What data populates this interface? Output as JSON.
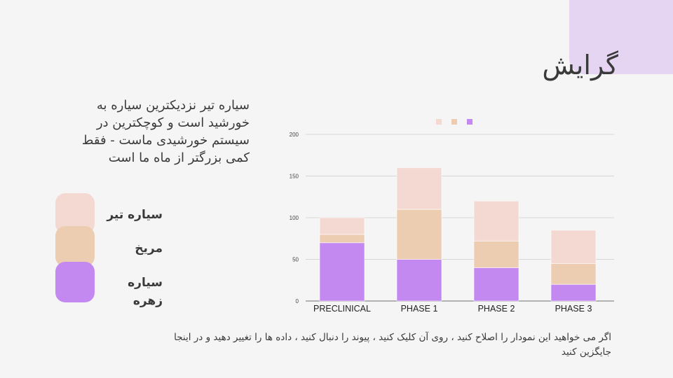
{
  "slide": {
    "title": "گرایش",
    "description": "سیاره تیر نزدیکترین سیاره به خورشید است و کوچکترین در سیستم خورشیدی ماست - فقط کمی بزرگتر از ماه ما است",
    "footnote": "اگر می خواهید این نمودار را اصلاح کنید ، روی آن کلیک کنید ، پیوند را دنبال کنید ، داده ها را تغییر دهید و در اینجا جایگزین کنید",
    "accent_color": "#e6d5f2"
  },
  "legend": {
    "items": [
      {
        "label": "سیاره تیر",
        "color": "#f3d9d1"
      },
      {
        "label": "مریخ",
        "color": "#eccdb2"
      },
      {
        "label": "سیاره زهره",
        "color": "#c489f1"
      }
    ]
  },
  "chart_data": {
    "type": "bar",
    "stacked": true,
    "categories": [
      "PRECLINICAL",
      "PHASE 1",
      "PHASE 2",
      "PHASE 3"
    ],
    "series": [
      {
        "values": [
          70,
          50,
          40,
          20
        ],
        "color": "#c489f1"
      },
      {
        "values": [
          10,
          60,
          32,
          25
        ],
        "color": "#eccdb2"
      },
      {
        "values": [
          20,
          50,
          48,
          40
        ],
        "color": "#f3d9d1"
      }
    ],
    "legend_colors_top": [
      "#f3d9d1",
      "#eccdb2",
      "#c489f1"
    ],
    "yticks": [
      0,
      50,
      100,
      150,
      200
    ],
    "ylim": [
      0,
      200
    ],
    "grid": true,
    "legend_position": "top-center"
  }
}
